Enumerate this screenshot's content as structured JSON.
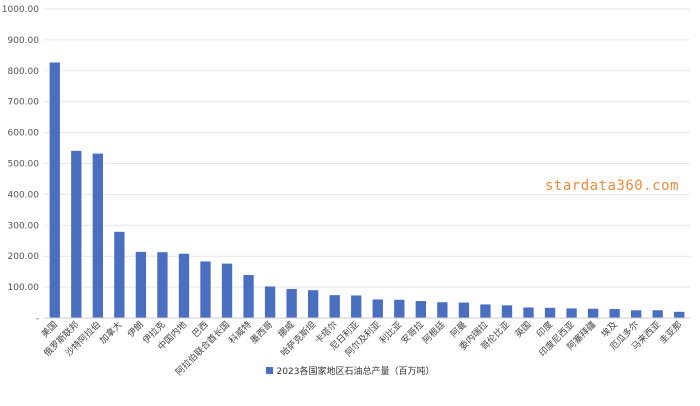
{
  "chart_data": {
    "type": "bar",
    "ylim": [
      0,
      1000
    ],
    "yticks": [
      0,
      100,
      200,
      300,
      400,
      500,
      600,
      700,
      800,
      900,
      1000
    ],
    "ytick_labels": [
      "-",
      "100.00",
      "200.00",
      "300.00",
      "400.00",
      "500.00",
      "600.00",
      "700.00",
      "800.00",
      "900.00",
      "1000.00"
    ],
    "grid": true,
    "legend_position": "bottom-center",
    "bar_color": "#4a6fc1",
    "categories": [
      "美国",
      "俄罗斯联邦",
      "沙特阿拉伯",
      "加拿大",
      "伊朗",
      "伊拉克",
      "中国内地",
      "巴西",
      "阿拉伯联合酋长国",
      "科威特",
      "墨西哥",
      "挪威",
      "哈萨克斯坦",
      "卡塔尔",
      "尼日利亚",
      "阿尔及利亚",
      "利比亚",
      "安哥拉",
      "阿根廷",
      "阿曼",
      "委内瑞拉",
      "哥伦比亚",
      "英国",
      "印度",
      "印度尼西亚",
      "阿塞拜疆",
      "埃及",
      "厄瓜多尔",
      "马来西亚",
      "圭亚那"
    ],
    "series": [
      {
        "name": "2023各国家地区石油总产量（百万吨）",
        "values": [
          827,
          541,
          532,
          279,
          214,
          213,
          208,
          183,
          176,
          139,
          102,
          94,
          90,
          74,
          73,
          60,
          59,
          55,
          51,
          50,
          44,
          41,
          34,
          33,
          31,
          30,
          29,
          25,
          25,
          20
        ]
      }
    ]
  },
  "watermark": "stardata360.com"
}
